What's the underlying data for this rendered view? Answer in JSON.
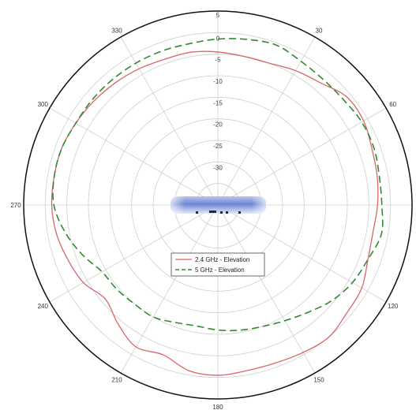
{
  "chart_data": {
    "type": "polar-line",
    "radial_ticks": [
      "5",
      "0",
      "-5",
      "-10",
      "-15",
      "-20",
      "-25",
      "-30"
    ],
    "r_range": [
      -40,
      5
    ],
    "angle_labels": [
      {
        "deg": 0,
        "label": ""
      },
      {
        "deg": 30,
        "label": "30"
      },
      {
        "deg": 60,
        "label": "60"
      },
      {
        "deg": 90,
        "label": ""
      },
      {
        "deg": 120,
        "label": "120"
      },
      {
        "deg": 150,
        "label": "150"
      },
      {
        "deg": 180,
        "label": "180"
      },
      {
        "deg": 210,
        "label": "210"
      },
      {
        "deg": 240,
        "label": "240"
      },
      {
        "deg": 270,
        "label": "270"
      },
      {
        "deg": 300,
        "label": "300"
      },
      {
        "deg": 330,
        "label": "330"
      }
    ],
    "grid": true,
    "legend_position": "center",
    "series": [
      {
        "name": "2.4 GHz - Elevation",
        "color": "#d9656a",
        "dash": "solid",
        "points": [
          [
            0,
            -4.5
          ],
          [
            10,
            -5
          ],
          [
            20,
            -5
          ],
          [
            30,
            -4
          ],
          [
            40,
            -3
          ],
          [
            50,
            -1
          ],
          [
            60,
            -1
          ],
          [
            70,
            -2
          ],
          [
            80,
            -2.5
          ],
          [
            90,
            -3
          ],
          [
            100,
            -3.5
          ],
          [
            110,
            -3
          ],
          [
            120,
            -1.5
          ],
          [
            130,
            -1
          ],
          [
            140,
            0
          ],
          [
            150,
            -0.5
          ],
          [
            160,
            -1
          ],
          [
            170,
            -1
          ],
          [
            180,
            -0.5
          ],
          [
            190,
            -1
          ],
          [
            200,
            -3
          ],
          [
            210,
            -2
          ],
          [
            220,
            -4
          ],
          [
            230,
            -6
          ],
          [
            240,
            -4
          ],
          [
            250,
            -3
          ],
          [
            260,
            -2
          ],
          [
            270,
            -1.5
          ],
          [
            280,
            -1.5
          ],
          [
            290,
            -1.5
          ],
          [
            300,
            -2
          ],
          [
            310,
            -2.5
          ],
          [
            320,
            -3
          ],
          [
            330,
            -3.5
          ],
          [
            340,
            -4
          ],
          [
            350,
            -4
          ]
        ]
      },
      {
        "name": "5 GHz - Elevation",
        "color": "#2e8b2e",
        "dash": "dashed",
        "points": [
          [
            0,
            -1.5
          ],
          [
            10,
            -1
          ],
          [
            20,
            -0.5
          ],
          [
            30,
            -1.5
          ],
          [
            40,
            -2
          ],
          [
            50,
            -2
          ],
          [
            60,
            -1.5
          ],
          [
            70,
            -1.5
          ],
          [
            80,
            -2
          ],
          [
            90,
            -2
          ],
          [
            100,
            -1.5
          ],
          [
            110,
            -3
          ],
          [
            120,
            -4
          ],
          [
            130,
            -5.5
          ],
          [
            140,
            -7.5
          ],
          [
            150,
            -9
          ],
          [
            160,
            -10
          ],
          [
            170,
            -10.5
          ],
          [
            180,
            -11
          ],
          [
            190,
            -11.5
          ],
          [
            200,
            -11
          ],
          [
            210,
            -10
          ],
          [
            220,
            -10
          ],
          [
            230,
            -9.5
          ],
          [
            240,
            -9
          ],
          [
            250,
            -6.5
          ],
          [
            260,
            -4
          ],
          [
            270,
            -2
          ],
          [
            280,
            -1.5
          ],
          [
            290,
            -1.5
          ],
          [
            300,
            -2
          ],
          [
            310,
            -2
          ],
          [
            320,
            -2
          ],
          [
            330,
            -2
          ],
          [
            340,
            -2
          ],
          [
            350,
            -2
          ]
        ]
      }
    ]
  }
}
